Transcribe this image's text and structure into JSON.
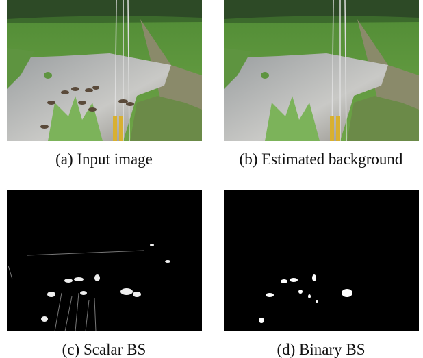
{
  "figure": {
    "panels": [
      {
        "caption": "(a) Input image"
      },
      {
        "caption": "(b) Estimated background"
      },
      {
        "caption": "(c) Scalar BS"
      },
      {
        "caption": "(d) Binary BS"
      }
    ]
  }
}
